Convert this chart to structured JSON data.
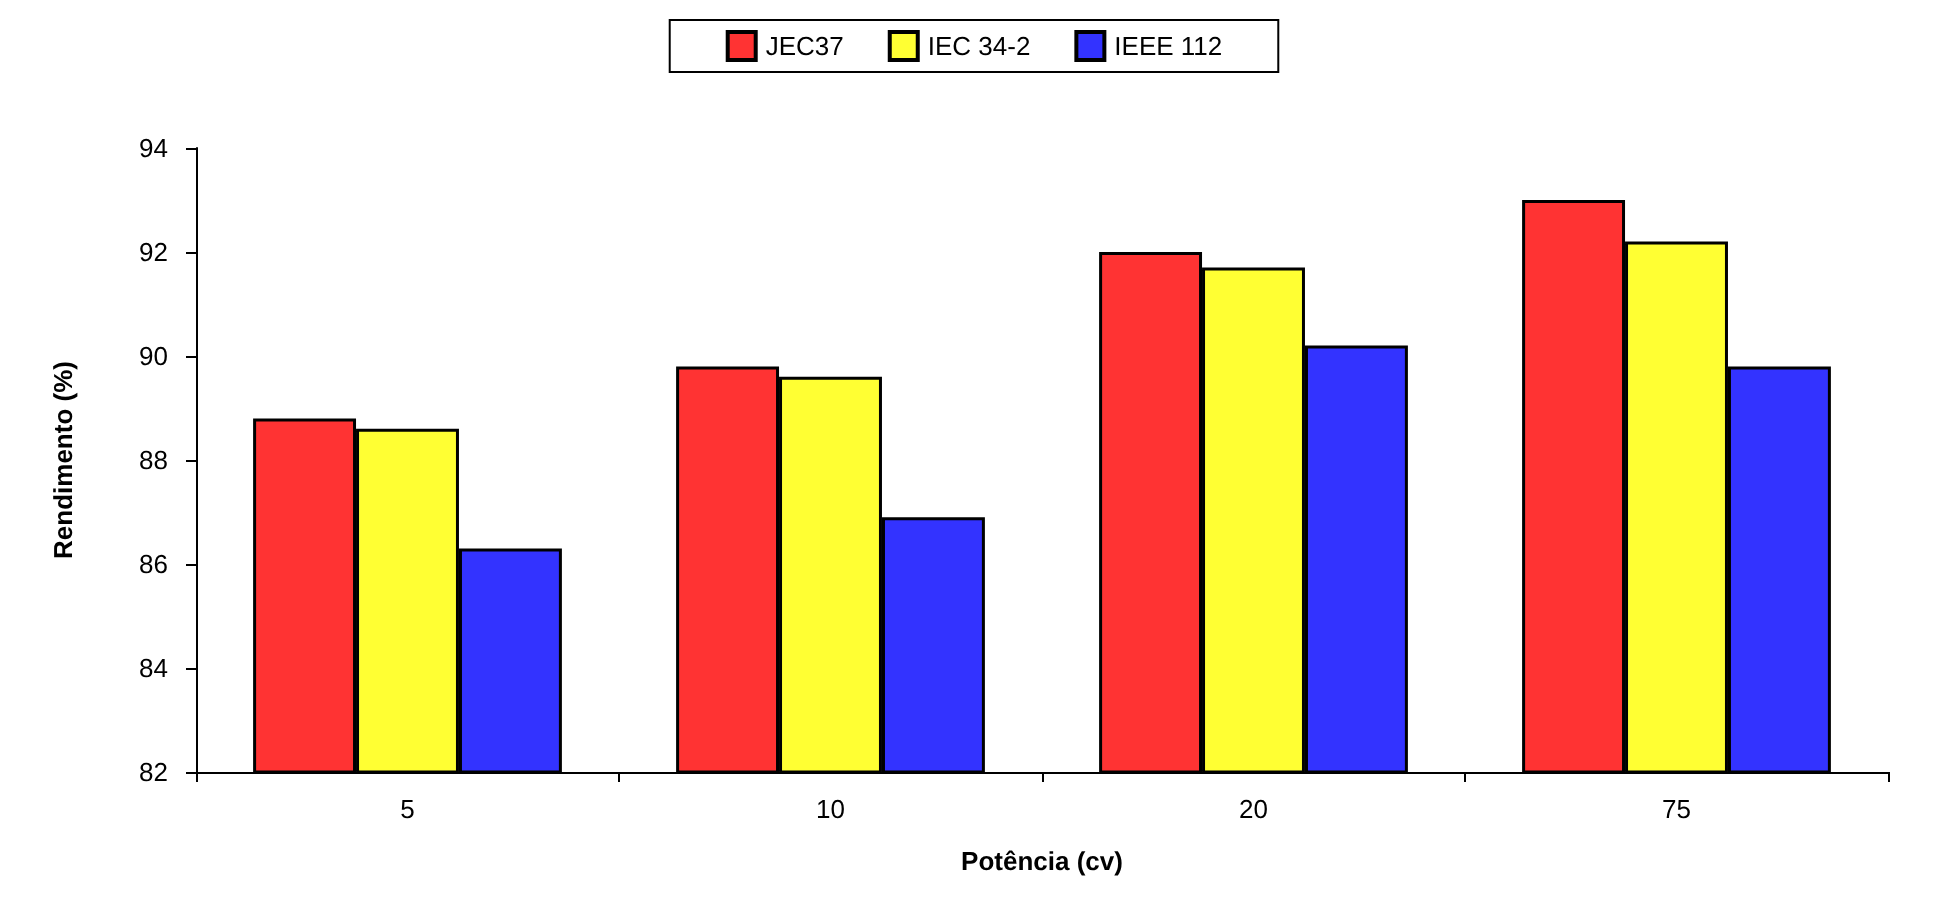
{
  "chart_data": {
    "type": "bar",
    "xlabel": "Potência (cv)",
    "ylabel": "Rendimento (%)",
    "categories": [
      "5",
      "10",
      "20",
      "75"
    ],
    "series": [
      {
        "name": "JEC37",
        "color": "#ff3333",
        "values": [
          88.8,
          89.8,
          92.0,
          93.0
        ]
      },
      {
        "name": "IEC 34-2",
        "color": "#ffff33",
        "values": [
          88.6,
          89.6,
          91.7,
          92.2
        ]
      },
      {
        "name": "IEEE 112",
        "color": "#3333ff",
        "values": [
          86.3,
          86.9,
          90.2,
          89.8
        ]
      }
    ],
    "ylim": [
      82,
      94
    ],
    "yticks": [
      82,
      84,
      86,
      88,
      90,
      92,
      94
    ],
    "grid": false,
    "legend": "top"
  }
}
